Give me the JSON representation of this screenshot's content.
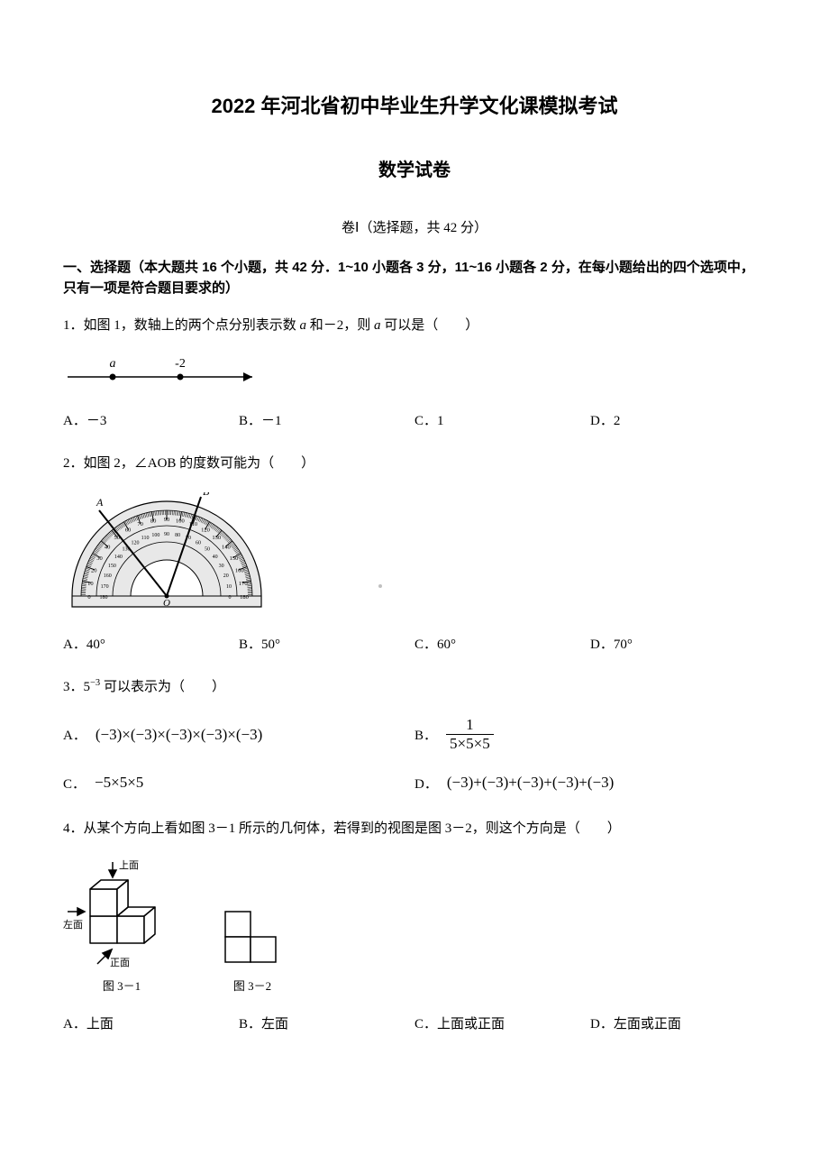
{
  "title_main": "2022 年河北省初中毕业生升学文化课模拟考试",
  "title_sub": "数学试卷",
  "section_label": "卷Ⅰ（选择题，共 42 分）",
  "instructions": "一、选择题（本大题共 16 个小题，共 42 分．1~10 小题各 3 分，11~16 小题各 2 分，在每小题给出的四个选项中，只有一项是符合题目要求的）",
  "q1": {
    "stem_pre": "1．如图 1，数轴上的两个点分别表示数 ",
    "stem_var1": "a",
    "stem_mid": " 和－2，则 ",
    "stem_var2": "a",
    "stem_post": " 可以是（　　）",
    "numberline": {
      "label_a": "a",
      "label_neg2": "-2"
    },
    "opts": {
      "A": "A．－3",
      "B": "B．－1",
      "C": "C．1",
      "D": "D．2"
    }
  },
  "q2": {
    "stem": "2．如图 2，∠AOB 的度数可能为（　　）",
    "protractor": {
      "label_A": "A",
      "label_B": "B",
      "label_O": "O",
      "ticks": [
        "0",
        "10",
        "20",
        "30",
        "40",
        "50",
        "60",
        "70",
        "80",
        "90",
        "100",
        "110",
        "120",
        "130",
        "140",
        "150",
        "160",
        "170",
        "180"
      ],
      "inner_ticks": [
        "180",
        "170",
        "160",
        "150",
        "140",
        "130",
        "120",
        "110",
        "100",
        "90",
        "80",
        "70",
        "60",
        "50",
        "40",
        "30",
        "20",
        "10",
        "0"
      ]
    },
    "opts": {
      "A": "A．40°",
      "B": "B．50°",
      "C": "C．60°",
      "D": "D．70°"
    }
  },
  "q3": {
    "stem_pre": "3．5",
    "stem_exp": "−3",
    "stem_post": " 可以表示为（　　）",
    "optA_label": "A．",
    "optA_expr": "(−3)×(−3)×(−3)×(−3)×(−3)",
    "optB_label": "B．",
    "optB_num": "1",
    "optB_den": "5×5×5",
    "optC_label": "C．",
    "optC_expr": "−5×5×5",
    "optD_label": "D．",
    "optD_expr": "(−3)+(−3)+(−3)+(−3)+(−3)"
  },
  "q4": {
    "stem": "4．从某个方向上看如图 3－1 所示的几何体，若得到的视图是图 3－2，则这个方向是（　　）",
    "fig31_label": "图 3－1",
    "fig32_label": "图 3－2",
    "label_top": "上面",
    "label_left": "左面",
    "label_front": "正面",
    "opts": {
      "A": "A．上面",
      "B": "B．左面",
      "C": "C．上面或正面",
      "D": "D．左面或正面"
    }
  },
  "colors": {
    "text": "#000000",
    "bg": "#ffffff",
    "figure_stroke": "#000000",
    "figure_fill": "#e8e8e8"
  }
}
